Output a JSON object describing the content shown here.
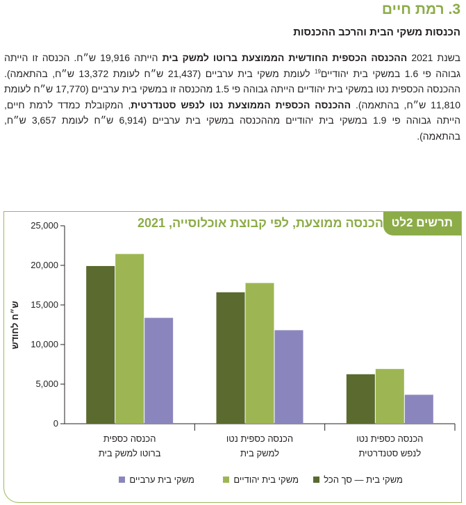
{
  "section": {
    "title": "3. רמת חיים"
  },
  "subsection": {
    "title": "הכנסות משקי הבית והרכב ההכנסות"
  },
  "paragraph": {
    "p1": "בשנת 2021 ",
    "b1": "ההכנסה הכספית החודשית הממוצעת ברוטו למשק בית",
    "p2": " הייתה 19,916 ש״ח. הכנסה זו הייתה גבוהה פי 1.6 במשקי בית יהודיים",
    "footnote": "19",
    "p3": " לעומת משקי בית ערביים (21,437 ש״ח לעומת 13,372 ש״ח, בהתאמה). ההכנסה הכספית נטו במשקי בית יהודיים הייתה גבוהה פי 1.5 מהכנסה זו במשקי בית ערביים (17,770 ש״ח לעומת 11,810 ש״ח, בהתאמה). ",
    "b2": "ההכנסה הכספית הממוצעת נטו לנפש סטנדרטית",
    "p4": ", המקובלת כמדד לרמת חיים, הייתה גבוהה פי 1.9 במשקי בית יהודיים מההכנסה במשקי בית ערביים (6,914 ש״ח לעומת 3,657 ש״ח, בהתאמה)."
  },
  "chart": {
    "tag": "תרשים 2לט",
    "title": "הכנסה ממוצעת, לפי קבוצת אוכלוסייה, 2021"
  },
  "chart_data": {
    "type": "bar",
    "ylabel": "ש״ח לחודש",
    "ylim": [
      0,
      25000
    ],
    "yticks": [
      0,
      5000,
      10000,
      15000,
      20000,
      25000
    ],
    "ytick_labels": [
      "0",
      "5,000",
      "10,000",
      "15,000",
      "20,000",
      "25,000"
    ],
    "categories": [
      [
        "הכנסה כספית",
        "ברוטו למשק בית"
      ],
      [
        "הכנסה כספית נטו",
        "למשק בית"
      ],
      [
        "הכנסה כספית נטו",
        "לנפש סטנדרטית"
      ]
    ],
    "series": [
      {
        "name": "משקי בית — סך הכל",
        "color": "#5b6a2e",
        "values": [
          19916,
          16600,
          6250
        ]
      },
      {
        "name": "משקי בית יהודיים",
        "color": "#9db653",
        "values": [
          21437,
          17770,
          6914
        ]
      },
      {
        "name": "משקי בית ערביים",
        "color": "#8a86bd",
        "values": [
          13372,
          11810,
          3657
        ]
      }
    ],
    "grid": false,
    "legend_position": "bottom"
  }
}
